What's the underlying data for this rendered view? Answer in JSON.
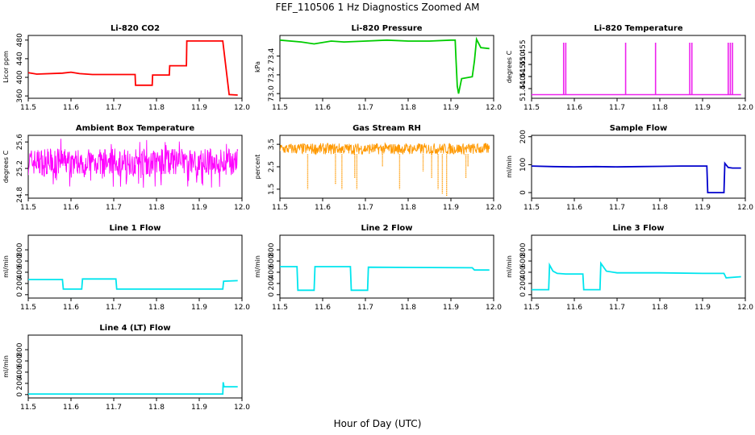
{
  "figure": {
    "title": "FEF_110506  1 Hz Diagnostics Zoomed AM",
    "xlabel": "Hour of Day (UTC)"
  },
  "chart_data": [
    {
      "type": "line",
      "title": "Li-820 CO2",
      "ylabel": "Licor ppm",
      "color": "#ff0000",
      "xlim": [
        11.5,
        12.0
      ],
      "ylim": [
        355,
        490
      ],
      "xticks": [
        "11.5",
        "11.6",
        "11.7",
        "11.8",
        "11.9",
        "12.0"
      ],
      "yticks": [
        {
          "v": 360,
          "label": "360"
        },
        {
          "v": 400,
          "label": "400"
        },
        {
          "v": 440,
          "label": "440"
        },
        {
          "v": 480,
          "label": "480"
        }
      ],
      "x": [
        11.5,
        11.52,
        11.58,
        11.6,
        11.62,
        11.65,
        11.7,
        11.75,
        11.751,
        11.79,
        11.791,
        11.83,
        11.831,
        11.87,
        11.871,
        11.955,
        11.96,
        11.97,
        11.99
      ],
      "y": [
        410,
        407,
        409,
        411,
        408,
        406,
        406,
        406,
        383,
        383,
        405,
        405,
        425,
        425,
        478,
        478,
        440,
        363,
        362
      ]
    },
    {
      "type": "line",
      "title": "Li-820 Pressure",
      "ylabel": "kPa",
      "color": "#00cc00",
      "xlim": [
        11.5,
        12.0
      ],
      "ylim": [
        72.95,
        73.62
      ],
      "xticks": [
        "11.5",
        "11.6",
        "11.7",
        "11.8",
        "11.9",
        "12.0"
      ],
      "yticks": [
        {
          "v": 73.0,
          "label": "73.0"
        },
        {
          "v": 73.2,
          "label": "73.2"
        },
        {
          "v": 73.4,
          "label": "73.4"
        }
      ],
      "x": [
        11.5,
        11.55,
        11.58,
        11.62,
        11.65,
        11.7,
        11.75,
        11.8,
        11.85,
        11.9,
        11.91,
        11.912,
        11.915,
        11.918,
        11.925,
        11.95,
        11.955,
        11.96,
        11.97,
        11.99
      ],
      "y": [
        73.57,
        73.55,
        73.53,
        73.56,
        73.55,
        73.56,
        73.57,
        73.56,
        73.56,
        73.57,
        73.57,
        73.35,
        73.08,
        73.0,
        73.16,
        73.18,
        73.35,
        73.58,
        73.49,
        73.48
      ]
    },
    {
      "type": "line",
      "title": "Li-820 Temperature",
      "ylabel": "degrees C",
      "color": "#ee22ee",
      "xlim": [
        11.5,
        12.0
      ],
      "ylim": [
        51.436,
        51.462
      ],
      "xticks": [
        "11.5",
        "11.6",
        "11.7",
        "11.8",
        "11.9",
        "12.0"
      ],
      "yticks": [
        {
          "v": 51.44,
          "label": "51.440"
        },
        {
          "v": 51.445,
          "label": "51.445"
        },
        {
          "v": 51.45,
          "label": "51.450"
        },
        {
          "v": 51.455,
          "label": "51.455"
        }
      ],
      "spikes": [
        11.575,
        11.58,
        11.72,
        11.79,
        11.87,
        11.875,
        11.96,
        11.965,
        11.97
      ],
      "base": 51.4375,
      "peak": 51.459
    },
    {
      "type": "line",
      "title": "Ambient Box Temperature",
      "ylabel": "degrees C",
      "color": "#ff00ff",
      "xlim": [
        11.5,
        12.0
      ],
      "ylim": [
        24.75,
        25.7
      ],
      "xticks": [
        "11.5",
        "11.6",
        "11.7",
        "11.8",
        "11.9",
        "12.0"
      ],
      "yticks": [
        {
          "v": 24.8,
          "label": "24.8"
        },
        {
          "v": 25.2,
          "label": "25.2"
        },
        {
          "v": 25.6,
          "label": "25.6"
        }
      ],
      "noise": {
        "lo": 25.1,
        "hi": 25.5,
        "center": 25.3,
        "spikes_lo": 24.9,
        "spikes_hi": 25.65
      }
    },
    {
      "type": "line",
      "title": "Gas Stream RH",
      "ylabel": "percent",
      "color": "#ff9900",
      "xlim": [
        11.5,
        12.0
      ],
      "ylim": [
        1.1,
        3.9
      ],
      "xticks": [
        "11.5",
        "11.6",
        "11.7",
        "11.8",
        "11.9",
        "12.0"
      ],
      "yticks": [
        {
          "v": 1.5,
          "label": "1.5"
        },
        {
          "v": 2.5,
          "label": "2.5"
        },
        {
          "v": 3.5,
          "label": "3.5"
        }
      ],
      "noise": {
        "lo": 3.05,
        "hi": 3.55,
        "center": 3.3
      },
      "dips": [
        [
          11.565,
          1.5
        ],
        [
          11.63,
          1.7
        ],
        [
          11.645,
          1.5
        ],
        [
          11.675,
          2.0
        ],
        [
          11.68,
          1.5
        ],
        [
          11.74,
          2.5
        ],
        [
          11.78,
          1.5
        ],
        [
          11.835,
          2.3
        ],
        [
          11.855,
          2.0
        ],
        [
          11.87,
          1.5
        ],
        [
          11.88,
          1.3
        ],
        [
          11.89,
          1.2
        ],
        [
          11.935,
          2.0
        ],
        [
          11.94,
          2.5
        ]
      ]
    },
    {
      "type": "line",
      "title": "Sample Flow",
      "ylabel": "ml/min",
      "color": "#0000cc",
      "xlim": [
        11.5,
        12.0
      ],
      "ylim": [
        -20,
        205
      ],
      "xticks": [
        "11.5",
        "11.6",
        "11.7",
        "11.8",
        "11.9",
        "12.0"
      ],
      "yticks": [
        {
          "v": 0,
          "label": "0"
        },
        {
          "v": 100,
          "label": "100"
        },
        {
          "v": 200,
          "label": "200"
        }
      ],
      "x": [
        11.5,
        11.55,
        11.6,
        11.65,
        11.7,
        11.75,
        11.8,
        11.85,
        11.9,
        11.91,
        11.912,
        11.95,
        11.952,
        11.96,
        11.97,
        11.99
      ],
      "y": [
        95,
        93,
        92,
        93,
        92,
        93,
        94,
        95,
        95,
        95,
        0,
        0,
        105,
        90,
        88,
        88
      ]
    },
    {
      "type": "line",
      "title": "Line 1 Flow",
      "ylabel": "ml/min",
      "color": "#00e5ee",
      "xlim": [
        11.5,
        12.0
      ],
      "ylim": [
        -60,
        1060
      ],
      "xticks": [
        "11.5",
        "11.6",
        "11.7",
        "11.8",
        "11.9",
        "12.0"
      ],
      "yticks": [
        {
          "v": 0,
          "label": "0"
        },
        {
          "v": 200,
          "label": "200"
        },
        {
          "v": 400,
          "label": "400"
        },
        {
          "v": 600,
          "label": "600"
        },
        {
          "v": 800,
          "label": "800"
        }
      ],
      "x": [
        11.5,
        11.58,
        11.582,
        11.625,
        11.627,
        11.705,
        11.707,
        11.955,
        11.957,
        11.99
      ],
      "y": [
        270,
        270,
        100,
        100,
        280,
        280,
        100,
        100,
        240,
        250
      ]
    },
    {
      "type": "line",
      "title": "Line 2 Flow",
      "ylabel": "ml/min",
      "color": "#00e5ee",
      "xlim": [
        11.5,
        12.0
      ],
      "ylim": [
        -60,
        1060
      ],
      "xticks": [
        "11.5",
        "11.6",
        "11.7",
        "11.8",
        "11.9",
        "12.0"
      ],
      "yticks": [
        {
          "v": 0,
          "label": "0"
        },
        {
          "v": 200,
          "label": "200"
        },
        {
          "v": 400,
          "label": "400"
        },
        {
          "v": 600,
          "label": "600"
        },
        {
          "v": 800,
          "label": "800"
        }
      ],
      "x": [
        11.5,
        11.54,
        11.542,
        11.58,
        11.582,
        11.665,
        11.667,
        11.705,
        11.707,
        11.95,
        11.955,
        11.99
      ],
      "y": [
        500,
        500,
        80,
        80,
        500,
        500,
        80,
        80,
        490,
        480,
        440,
        440
      ]
    },
    {
      "type": "line",
      "title": "Line 3 Flow",
      "ylabel": "ml/min",
      "color": "#00e5ee",
      "xlim": [
        11.5,
        12.0
      ],
      "ylim": [
        -60,
        1060
      ],
      "xticks": [
        "11.5",
        "11.6",
        "11.7",
        "11.8",
        "11.9",
        "12.0"
      ],
      "yticks": [
        {
          "v": 0,
          "label": "0"
        },
        {
          "v": 200,
          "label": "200"
        },
        {
          "v": 400,
          "label": "400"
        },
        {
          "v": 600,
          "label": "600"
        },
        {
          "v": 800,
          "label": "800"
        }
      ],
      "x": [
        11.5,
        11.54,
        11.542,
        11.55,
        11.56,
        11.58,
        11.62,
        11.622,
        11.66,
        11.662,
        11.675,
        11.7,
        11.8,
        11.9,
        11.95,
        11.955,
        11.99
      ],
      "y": [
        90,
        90,
        530,
        420,
        380,
        370,
        370,
        90,
        90,
        560,
        420,
        390,
        390,
        380,
        380,
        300,
        320
      ]
    },
    {
      "type": "line",
      "title": "Line 4 (LT) Flow",
      "ylabel": "ml/min",
      "color": "#00e5ee",
      "xlim": [
        11.5,
        12.0
      ],
      "ylim": [
        -60,
        1060
      ],
      "xticks": [
        "11.5",
        "11.6",
        "11.7",
        "11.8",
        "11.9",
        "12.0"
      ],
      "yticks": [
        {
          "v": 0,
          "label": "0"
        },
        {
          "v": 200,
          "label": "200"
        },
        {
          "v": 400,
          "label": "400"
        },
        {
          "v": 600,
          "label": "600"
        },
        {
          "v": 800,
          "label": "800"
        }
      ],
      "x": [
        11.5,
        11.6,
        11.7,
        11.8,
        11.9,
        11.955,
        11.956,
        11.958,
        11.96,
        11.99
      ],
      "y": [
        10,
        10,
        10,
        10,
        10,
        10,
        220,
        140,
        140,
        140
      ]
    }
  ]
}
